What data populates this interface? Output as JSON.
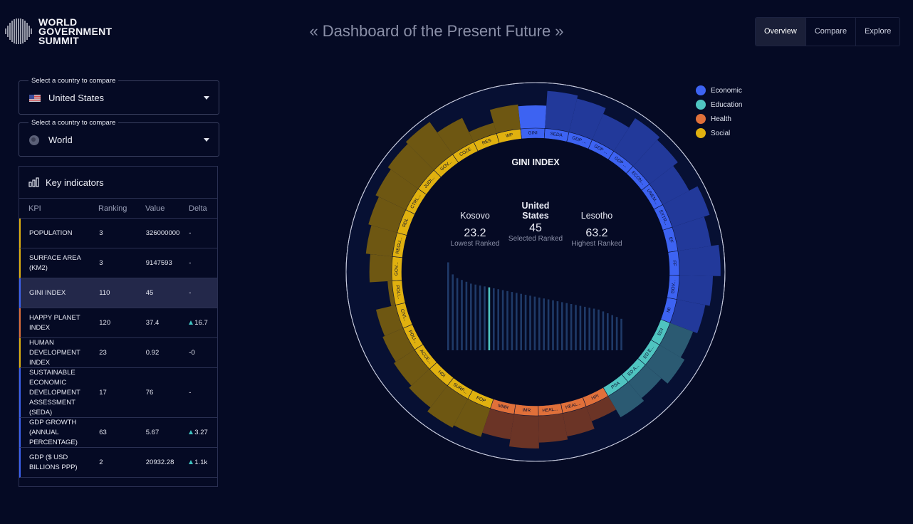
{
  "header": {
    "logo_lines": [
      "WORLD",
      "GOVERNMENT",
      "SUMMIT"
    ],
    "title": "« Dashboard of the Present Future »",
    "tabs": [
      {
        "label": "Overview",
        "active": true
      },
      {
        "label": "Compare",
        "active": false
      },
      {
        "label": "Explore",
        "active": false
      }
    ]
  },
  "selectors": [
    {
      "label": "Select a country to compare",
      "value": "United States",
      "icon": "us-flag-icon"
    },
    {
      "label": "Select a country to compare",
      "value": "World",
      "icon": "globe-icon"
    }
  ],
  "key_indicators": {
    "title": "Key indicators",
    "columns": [
      "KPI",
      "Ranking",
      "Value",
      "Delta"
    ],
    "rows": [
      {
        "kpi": "POPULATION",
        "ranking": "3",
        "value": "326000000",
        "delta": "-",
        "up": false,
        "category": "Social"
      },
      {
        "kpi": "SURFACE AREA (KM2)",
        "ranking": "3",
        "value": "9147593",
        "delta": "-",
        "up": false,
        "category": "Social"
      },
      {
        "kpi": "GINI INDEX",
        "ranking": "110",
        "value": "45",
        "delta": "-",
        "up": false,
        "category": "Economic",
        "selected": true
      },
      {
        "kpi": "HAPPY PLANET INDEX",
        "ranking": "120",
        "value": "37.4",
        "delta": "16.7",
        "up": true,
        "category": "Health"
      },
      {
        "kpi": "HUMAN DEVELOPMENT INDEX",
        "ranking": "23",
        "value": "0.92",
        "delta": "-0",
        "up": false,
        "category": "Social"
      },
      {
        "kpi": "SUSTAINABLE ECONOMIC DEVELOPMENT ASSESSMENT (SEDA)",
        "ranking": "17",
        "value": "76",
        "delta": "-",
        "up": false,
        "category": "Economic"
      },
      {
        "kpi": "GDP GROWTH (ANNUAL PERCENTAGE)",
        "ranking": "63",
        "value": "5.67",
        "delta": "3.27",
        "up": true,
        "category": "Economic"
      },
      {
        "kpi": "GDP ($ USD BILLIONS PPP)",
        "ranking": "2",
        "value": "20932.28",
        "delta": "1.1k",
        "up": true,
        "category": "Economic"
      }
    ]
  },
  "legend": [
    {
      "label": "Economic",
      "color": "#3d63f2"
    },
    {
      "label": "Education",
      "color": "#4fc4c0"
    },
    {
      "label": "Health",
      "color": "#e0703a"
    },
    {
      "label": "Social",
      "color": "#e0b10f"
    }
  ],
  "selected_kpi": {
    "title": "GINI INDEX",
    "lowest": {
      "country": "Kosovo",
      "value": "23.2",
      "label": "Lowest Ranked"
    },
    "selected": {
      "country": "United States",
      "value": "45",
      "label": "Selected Ranked"
    },
    "highest": {
      "country": "Lesotho",
      "value": "63.2",
      "label": "Highest Ranked"
    }
  },
  "chart_data": {
    "type": "radial-bar",
    "segments": [
      {
        "label": "GINI",
        "category": "Economic",
        "value": 0.46,
        "highlight": true
      },
      {
        "label": "SEDA",
        "category": "Economic",
        "value": 0.79
      },
      {
        "label": "GDP ...",
        "category": "Economic",
        "value": 0.72
      },
      {
        "label": "GDP ...",
        "category": "Economic",
        "value": 0.58
      },
      {
        "label": "GDP ...",
        "category": "Economic",
        "value": 0.83
      },
      {
        "label": "ECON...",
        "category": "Economic",
        "value": 0.75
      },
      {
        "label": "UNEM...",
        "category": "Economic",
        "value": 0.62
      },
      {
        "label": "EXTR...",
        "category": "Economic",
        "value": 0.83
      },
      {
        "label": "EF",
        "category": "Economic",
        "value": 0.7
      },
      {
        "label": "FF",
        "category": "Economic",
        "value": 0.87
      },
      {
        "label": "GOV...",
        "category": "Economic",
        "value": 0.7
      },
      {
        "label": "MI",
        "category": "Economic",
        "value": 0.6
      },
      {
        "label": "EDI",
        "category": "Education",
        "value": 0.5
      },
      {
        "label": "ED E...",
        "category": "Education",
        "value": 0.6
      },
      {
        "label": "ED A...",
        "category": "Education",
        "value": 0.42
      },
      {
        "label": "PSA",
        "category": "Education",
        "value": 0.5
      },
      {
        "label": "HPI",
        "category": "Health",
        "value": 0.3
      },
      {
        "label": "HEAL...",
        "category": "Health",
        "value": 0.48
      },
      {
        "label": "HEAL...",
        "category": "Health",
        "value": 0.55
      },
      {
        "label": "IMR",
        "category": "Health",
        "value": 0.68
      },
      {
        "label": "MMR",
        "category": "Health",
        "value": 0.52
      },
      {
        "label": "POP",
        "category": "Social",
        "value": 0.62
      },
      {
        "label": "SURF...",
        "category": "Social",
        "value": 0.68
      },
      {
        "label": "HDI",
        "category": "Social",
        "value": 0.57
      },
      {
        "label": "ACCE...",
        "category": "Social",
        "value": 0.5
      },
      {
        "label": "POLI...",
        "category": "Social",
        "value": 0.45
      },
      {
        "label": "CIVI...",
        "category": "Social",
        "value": 0.4
      },
      {
        "label": "POLI...",
        "category": "Social",
        "value": 0.05
      },
      {
        "label": "GOV...",
        "category": "Social",
        "value": 0.45
      },
      {
        "label": "REGU...",
        "category": "Social",
        "value": 0.55
      },
      {
        "label": "RDL",
        "category": "Social",
        "value": 0.62
      },
      {
        "label": "CTRL...",
        "category": "Social",
        "value": 0.7
      },
      {
        "label": "JUDI...",
        "category": "Social",
        "value": 0.78
      },
      {
        "label": "GOV...",
        "category": "Social",
        "value": 0.84
      },
      {
        "label": "COZE",
        "category": "Social",
        "value": 0.55
      },
      {
        "label": "RES",
        "category": "Social",
        "value": 0.2
      },
      {
        "label": "WP",
        "category": "Social",
        "value": 0.5
      }
    ],
    "distribution": [
      0.95,
      0.82,
      0.78,
      0.76,
      0.74,
      0.72,
      0.71,
      0.7,
      0.69,
      0.68,
      0.67,
      0.66,
      0.65,
      0.64,
      0.63,
      0.62,
      0.61,
      0.6,
      0.59,
      0.58,
      0.57,
      0.56,
      0.55,
      0.54,
      0.53,
      0.52,
      0.51,
      0.5,
      0.49,
      0.48,
      0.47,
      0.46,
      0.45,
      0.44,
      0.42,
      0.4,
      0.38,
      0.36,
      0.34
    ],
    "distribution_highlight_index": 9
  }
}
